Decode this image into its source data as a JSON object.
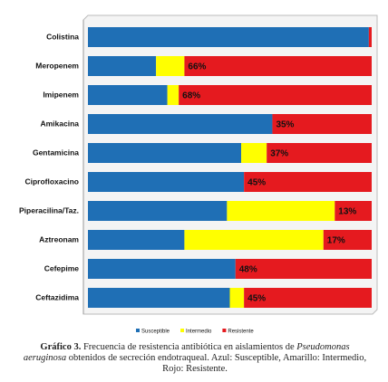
{
  "chart_data": {
    "type": "stacked-barh",
    "categories": [
      "Colistina",
      "Meropenem",
      "Imipenem",
      "Amikacina",
      "Gentamicina",
      "Ciprofloxacino",
      "Piperacilina/Taz.",
      "Aztreonam",
      "Cefepime",
      "Ceftazidima"
    ],
    "xlim": [
      0,
      100
    ],
    "series": [
      {
        "name": "Susceptible",
        "color": "#1f6fb5",
        "values": [
          99,
          24,
          28,
          65,
          54,
          55,
          49,
          34,
          52,
          50
        ]
      },
      {
        "name": "Intermedio",
        "color": "#ffff00",
        "values": [
          0,
          10,
          4,
          0,
          9,
          0,
          38,
          49,
          0,
          5
        ]
      },
      {
        "name": "Resistente",
        "color": "#e51a1f",
        "values": [
          1,
          66,
          68,
          35,
          37,
          45,
          13,
          17,
          48,
          45
        ],
        "value_labels": [
          null,
          "66%",
          "68%",
          "35%",
          "37%",
          "45%",
          "13%",
          "17%",
          "48%",
          "45%"
        ]
      }
    ]
  },
  "caption": {
    "label": "Gráfico 3.",
    "text_before": "Frecuencia de resistencia antibiótica en aislamientos de",
    "species": "Pseudomonas aeruginosa",
    "text_after": "obtenidos de secreción endotraqueal. Azul: Susceptible, Amarillo: Intermedio, Rojo: Resistente."
  }
}
